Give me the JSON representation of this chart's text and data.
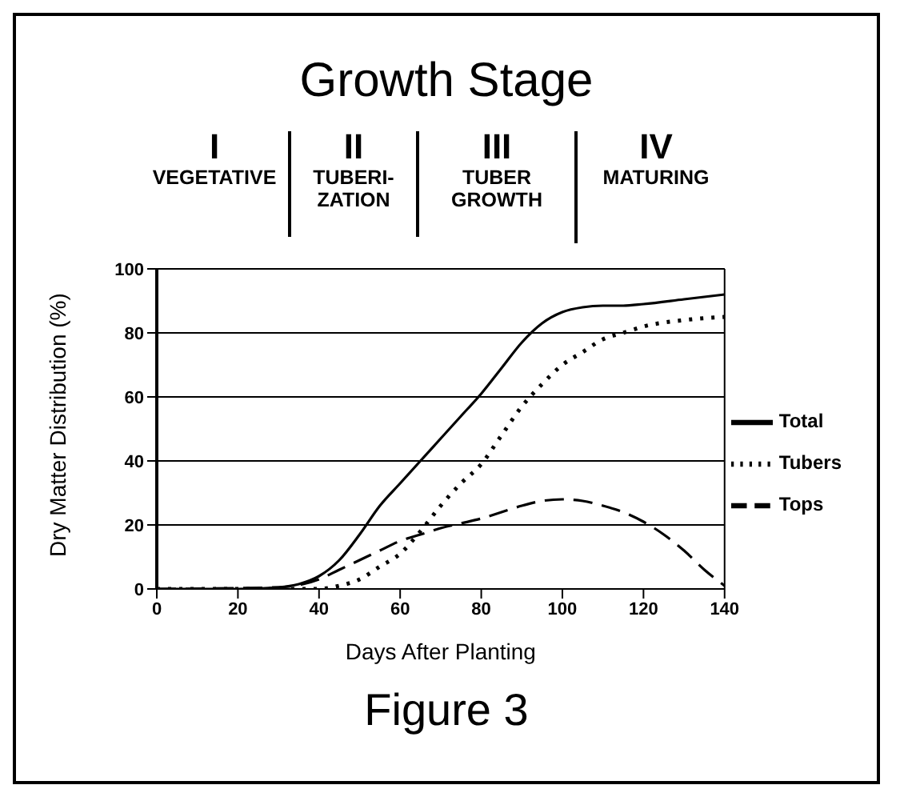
{
  "chart_data": {
    "type": "line",
    "title": "Growth Stage",
    "xlabel": "Days After Planting",
    "ylabel": "Dry Matter Distribution (%)",
    "annotations": [
      "I",
      "VEGETATIVE",
      "II",
      "TUBERI-\nZATION",
      "III",
      "TUBER\nGROWTH",
      "IV",
      "MATURING",
      "Figure 3"
    ],
    "xlim": [
      0,
      140
    ],
    "xticks": [
      0,
      20,
      40,
      60,
      80,
      100,
      120,
      140
    ],
    "ylim": [
      0,
      100
    ],
    "yticks": [
      0,
      20,
      40,
      60,
      80,
      100
    ],
    "grid": "y",
    "legend": "right",
    "marker": "none",
    "series": [
      {
        "name": "Total",
        "color": "#000000",
        "line_style": "solid",
        "x": [
          0,
          20,
          30,
          35,
          40,
          45,
          50,
          55,
          60,
          65,
          70,
          75,
          80,
          85,
          90,
          95,
          100,
          105,
          110,
          115,
          120,
          130,
          140
        ],
        "values": [
          0,
          0,
          0.5,
          1.5,
          4,
          9,
          17,
          26,
          33,
          40,
          47,
          54,
          61,
          69,
          77,
          83,
          86.5,
          88,
          88.5,
          88.5,
          89,
          90.5,
          92
        ]
      },
      {
        "name": "Tubers",
        "color": "#000000",
        "line_style": "dotted",
        "x": [
          0,
          40,
          45,
          50,
          55,
          60,
          65,
          70,
          75,
          80,
          85,
          90,
          95,
          100,
          105,
          110,
          115,
          120,
          130,
          140
        ],
        "values": [
          0,
          0,
          1,
          3,
          7,
          11,
          18,
          26,
          33,
          39,
          48,
          57,
          64,
          70,
          74,
          78,
          80,
          82,
          84,
          85
        ]
      },
      {
        "name": "Tops",
        "color": "#000000",
        "line_style": "dashed",
        "x": [
          0,
          30,
          40,
          45,
          50,
          55,
          60,
          65,
          70,
          75,
          80,
          85,
          90,
          95,
          100,
          105,
          110,
          115,
          120,
          125,
          130,
          135,
          140
        ],
        "values": [
          0,
          0.5,
          3,
          6,
          9,
          12,
          15,
          17,
          19,
          20.5,
          22,
          24,
          26,
          27.5,
          28,
          27.5,
          26,
          24,
          21,
          17,
          12,
          6,
          1
        ]
      }
    ]
  }
}
